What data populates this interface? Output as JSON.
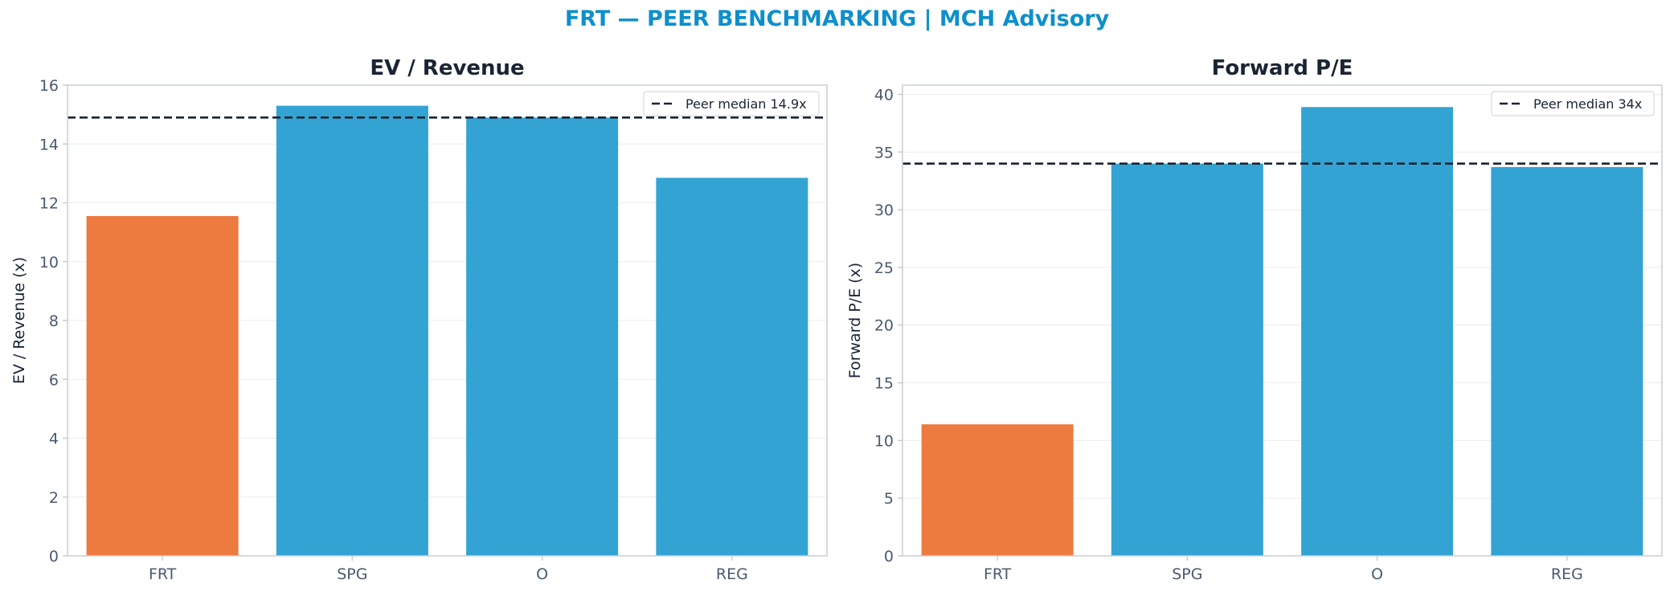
{
  "figure": {
    "title": "FRT — PEER BENCHMARKING | MCH Advisory"
  },
  "colors": {
    "highlight": "#ed7a3e",
    "peer": "#33a3d4",
    "median_line": "#1a2433",
    "axis": "#c9ced6",
    "tick_text": "#4a5a70",
    "title_text": "#1a2433"
  },
  "chart_data": [
    {
      "type": "bar",
      "title": "EV / Revenue",
      "xlabel": "",
      "ylabel": "EV / Revenue (x)",
      "categories": [
        "FRT",
        "SPG",
        "O",
        "REG"
      ],
      "values": [
        11.55,
        15.3,
        14.9,
        12.85
      ],
      "highlight": "FRT",
      "ylim": [
        0,
        16
      ],
      "yticks": [
        0,
        2,
        4,
        6,
        8,
        10,
        12,
        14,
        16
      ],
      "grid": true,
      "reference_line": {
        "value": 14.9,
        "label": "Peer median 14.9x",
        "style": "dashed"
      },
      "legend": "top-right"
    },
    {
      "type": "bar",
      "title": "Forward P/E",
      "xlabel": "",
      "ylabel": "Forward P/E (x)",
      "categories": [
        "FRT",
        "SPG",
        "O",
        "REG"
      ],
      "values": [
        11.4,
        34.0,
        38.9,
        33.7
      ],
      "highlight": "FRT",
      "ylim": [
        0,
        40.8
      ],
      "yticks": [
        0,
        5,
        10,
        15,
        20,
        25,
        30,
        35,
        40
      ],
      "grid": true,
      "reference_line": {
        "value": 34,
        "label": "Peer median 34x",
        "style": "dashed"
      },
      "legend": "top-right"
    }
  ]
}
